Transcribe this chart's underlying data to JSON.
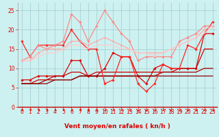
{
  "xlabel": "Vent moyen/en rafales ( kn/h )",
  "bg_color": "#cdf0f0",
  "grid_color": "#a0cccc",
  "ylim": [
    0,
    27
  ],
  "xlim": [
    -0.5,
    23.5
  ],
  "yticks": [
    0,
    5,
    10,
    15,
    20,
    25
  ],
  "xticks": [
    0,
    1,
    2,
    3,
    4,
    5,
    6,
    7,
    8,
    9,
    10,
    11,
    12,
    13,
    14,
    15,
    16,
    17,
    18,
    19,
    20,
    21,
    22,
    23
  ],
  "lines": [
    {
      "x": [
        0,
        1,
        2,
        3,
        4,
        5,
        6,
        7,
        8,
        9,
        10,
        11,
        12,
        13,
        14,
        15,
        16,
        17,
        18,
        19,
        20,
        21,
        22,
        23
      ],
      "y": [
        7,
        7,
        8,
        8,
        8,
        8,
        12,
        12,
        8,
        8,
        10,
        14,
        13,
        13,
        8,
        6,
        10,
        11,
        10,
        10,
        10,
        10,
        19,
        19
      ],
      "color": "#dd0000",
      "lw": 0.9,
      "marker": "D",
      "ms": 1.8,
      "alpha": 1.0
    },
    {
      "x": [
        0,
        1,
        2,
        3,
        4,
        5,
        6,
        7,
        8,
        9,
        10,
        11,
        12,
        13,
        14,
        15,
        16,
        17,
        18,
        19,
        20,
        21,
        22,
        23
      ],
      "y": [
        6,
        6,
        7,
        7,
        8,
        8,
        9,
        9,
        8,
        9,
        9,
        9,
        9,
        9,
        9,
        9,
        9,
        9,
        9,
        10,
        10,
        10,
        15,
        15
      ],
      "color": "#cc0000",
      "lw": 0.9,
      "marker": null,
      "ms": 0,
      "alpha": 1.0
    },
    {
      "x": [
        0,
        1,
        2,
        3,
        4,
        5,
        6,
        7,
        8,
        9,
        10,
        11,
        12,
        13,
        14,
        15,
        16,
        17,
        18,
        19,
        20,
        21,
        22,
        23
      ],
      "y": [
        6,
        6,
        6,
        7,
        7,
        7,
        7,
        8,
        8,
        8,
        8,
        8,
        8,
        8,
        8,
        8,
        8,
        9,
        9,
        9,
        9,
        9,
        10,
        10
      ],
      "color": "#aa0000",
      "lw": 0.9,
      "marker": null,
      "ms": 0,
      "alpha": 1.0
    },
    {
      "x": [
        0,
        1,
        2,
        3,
        4,
        5,
        6,
        7,
        8,
        9,
        10,
        11,
        12,
        13,
        14,
        15,
        16,
        17,
        18,
        19,
        20,
        21,
        22,
        23
      ],
      "y": [
        6,
        6,
        6,
        6,
        7,
        7,
        7,
        8,
        8,
        8,
        8,
        8,
        8,
        8,
        8,
        8,
        8,
        8,
        8,
        8,
        8,
        8,
        8,
        8
      ],
      "color": "#880000",
      "lw": 0.9,
      "marker": null,
      "ms": 0,
      "alpha": 1.0
    },
    {
      "x": [
        0,
        1,
        2,
        3,
        4,
        5,
        6,
        7,
        8,
        9,
        10,
        11,
        12,
        13,
        14,
        15,
        16,
        17,
        18,
        19,
        20,
        21,
        22,
        23
      ],
      "y": [
        17,
        13,
        16,
        16,
        16,
        16,
        20,
        17,
        15,
        15,
        6,
        7,
        13,
        13,
        6,
        4,
        6,
        11,
        10,
        10,
        16,
        15,
        19,
        22
      ],
      "color": "#ff2222",
      "lw": 0.9,
      "marker": "D",
      "ms": 1.8,
      "alpha": 1.0
    },
    {
      "x": [
        0,
        1,
        2,
        3,
        4,
        5,
        6,
        7,
        8,
        9,
        10,
        11,
        12,
        13,
        14,
        15,
        16,
        17,
        18,
        19,
        20,
        21,
        22,
        23
      ],
      "y": [
        12,
        13,
        16,
        15,
        16,
        17,
        24,
        22,
        17,
        21,
        25,
        22,
        19,
        17,
        12,
        13,
        13,
        13,
        13,
        17,
        18,
        19,
        21,
        21
      ],
      "color": "#ff8888",
      "lw": 0.9,
      "marker": "D",
      "ms": 1.8,
      "alpha": 1.0
    },
    {
      "x": [
        0,
        1,
        2,
        3,
        4,
        5,
        6,
        7,
        8,
        9,
        10,
        11,
        12,
        13,
        14,
        15,
        16,
        17,
        18,
        19,
        20,
        21,
        22,
        23
      ],
      "y": [
        12,
        12,
        14,
        15,
        15,
        15,
        17,
        17,
        16,
        17,
        18,
        17,
        16,
        15,
        14,
        14,
        14,
        14,
        15,
        16,
        17,
        18,
        20,
        21
      ],
      "color": "#ffaaaa",
      "lw": 0.9,
      "marker": "D",
      "ms": 1.5,
      "alpha": 1.0
    },
    {
      "x": [
        0,
        1,
        2,
        3,
        4,
        5,
        6,
        7,
        8,
        9,
        10,
        11,
        12,
        13,
        14,
        15,
        16,
        17,
        18,
        19,
        20,
        21,
        22,
        23
      ],
      "y": [
        12,
        12,
        13,
        14,
        14,
        15,
        16,
        16,
        15,
        16,
        16,
        16,
        15,
        15,
        14,
        14,
        13,
        14,
        15,
        16,
        17,
        18,
        19,
        21
      ],
      "color": "#ffcccc",
      "lw": 0.9,
      "marker": null,
      "ms": 0,
      "alpha": 1.0
    }
  ],
  "xlabel_color": "#dd0000",
  "tick_color": "#dd0000",
  "spine_color": "#cc0000",
  "label_fontsize": 6.5,
  "tick_fontsize": 5.5
}
